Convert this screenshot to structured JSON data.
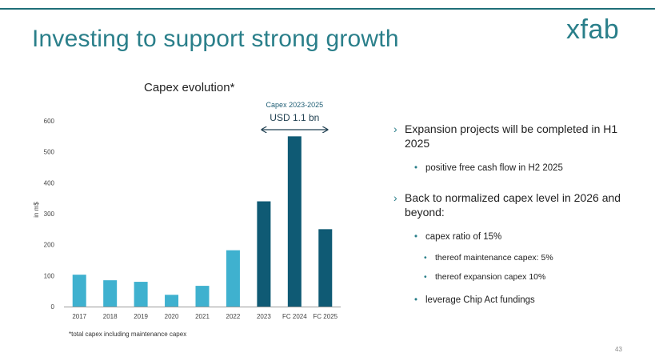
{
  "slide": {
    "title": "Investing to support strong growth",
    "logo": "xfab",
    "page_number": "43"
  },
  "chart_data": {
    "type": "bar",
    "title": "Capex evolution*",
    "ylabel": "in m$",
    "xlabel": "",
    "ylim": [
      0,
      600
    ],
    "yticks": [
      0,
      100,
      200,
      300,
      400,
      500,
      600
    ],
    "categories": [
      "2017",
      "2018",
      "2019",
      "2020",
      "2021",
      "2022",
      "2023",
      "FC 2024",
      "FC 2025"
    ],
    "values": [
      103,
      85,
      80,
      38,
      67,
      182,
      340,
      550,
      250
    ],
    "colors": [
      "#3fb1cf",
      "#3fb1cf",
      "#3fb1cf",
      "#3fb1cf",
      "#3fb1cf",
      "#3fb1cf",
      "#0f5a74",
      "#0f5a74",
      "#0f5a74"
    ],
    "grid": false,
    "annotation": {
      "label_small": "Capex 2023-2025",
      "label_big": "USD 1.1 bn",
      "from_category": "2023",
      "to_category": "FC 2025"
    },
    "footnote": "*total capex including maintenance capex"
  },
  "bullets": [
    {
      "text": "Expansion projects will be completed in H1 2025",
      "children": [
        {
          "text": "positive free cash flow in H2 2025",
          "children": []
        }
      ]
    },
    {
      "text": "Back to normalized capex level in 2026 and beyond:",
      "children": [
        {
          "text": "capex ratio of 15%",
          "children": [
            {
              "text": "thereof maintenance capex: 5%"
            },
            {
              "text": "thereof expansion capex 10%"
            }
          ]
        },
        {
          "text": "leverage Chip Act fundings",
          "children": []
        }
      ]
    }
  ],
  "symbols": {
    "chevron": "›",
    "dot": "•"
  },
  "colors": {
    "accent": "#2a7f8a",
    "bar_light": "#3fb1cf",
    "bar_dark": "#0f5a74"
  }
}
